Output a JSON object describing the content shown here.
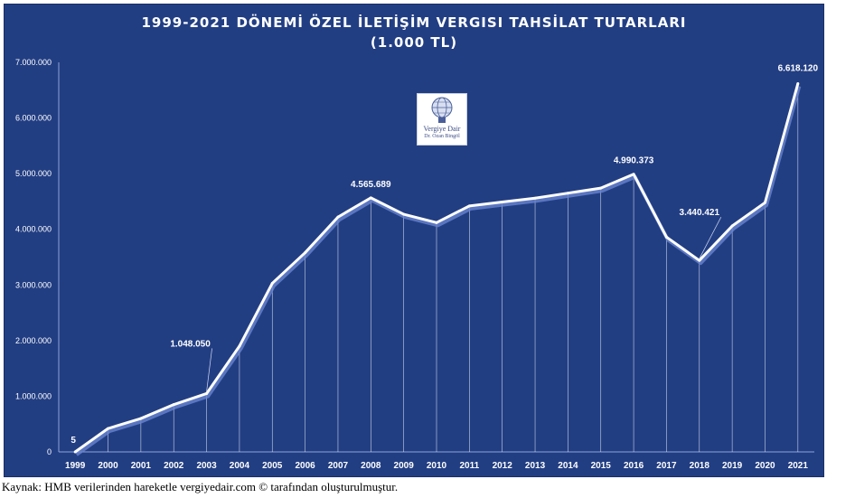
{
  "chart_data": {
    "type": "line",
    "title_line1": "1999-2021 DÖNEMİ ÖZEL İLETİŞİM VERGISI TAHSİLAT TUTARLARI",
    "title_line2": "(1.000 TL)",
    "x": [
      "1999",
      "2000",
      "2001",
      "2002",
      "2003",
      "2004",
      "2005",
      "2006",
      "2007",
      "2008",
      "2009",
      "2010",
      "2011",
      "2012",
      "2013",
      "2014",
      "2015",
      "2016",
      "2017",
      "2018",
      "2019",
      "2020",
      "2021"
    ],
    "values": [
      5,
      420000,
      600000,
      850000,
      1048050,
      1900000,
      3030000,
      3580000,
      4220000,
      4565689,
      4270000,
      4120000,
      4420000,
      4490000,
      4560000,
      4650000,
      4740000,
      4990373,
      3860000,
      3440421,
      4060000,
      4480000,
      6618120
    ],
    "y_ticks": [
      "0",
      "1.000.000",
      "2.000.000",
      "3.000.000",
      "4.000.000",
      "5.000.000",
      "6.000.000",
      "7.000.000"
    ],
    "ylim": [
      0,
      7000000
    ],
    "annotations": [
      {
        "year": "1999",
        "label": "5"
      },
      {
        "year": "2003",
        "label": "1.048.050"
      },
      {
        "year": "2008",
        "label": "4.565.689"
      },
      {
        "year": "2016",
        "label": "4.990.373"
      },
      {
        "year": "2018",
        "label": "3.440.421"
      },
      {
        "year": "2021",
        "label": "6.618.120"
      }
    ],
    "grid": false,
    "drop_lines": true,
    "colors": {
      "background": "#223e83",
      "line": "#ffffff",
      "shadow": "#6a85d0",
      "text": "#ffffff"
    }
  },
  "logo": {
    "line1": "Vergiye Dair",
    "line2": "Dr. Ozan Bingöl"
  },
  "source": "Kaynak: HMB verilerinden hareketle vergiyedair.com © tarafından oluşturulmuştur."
}
